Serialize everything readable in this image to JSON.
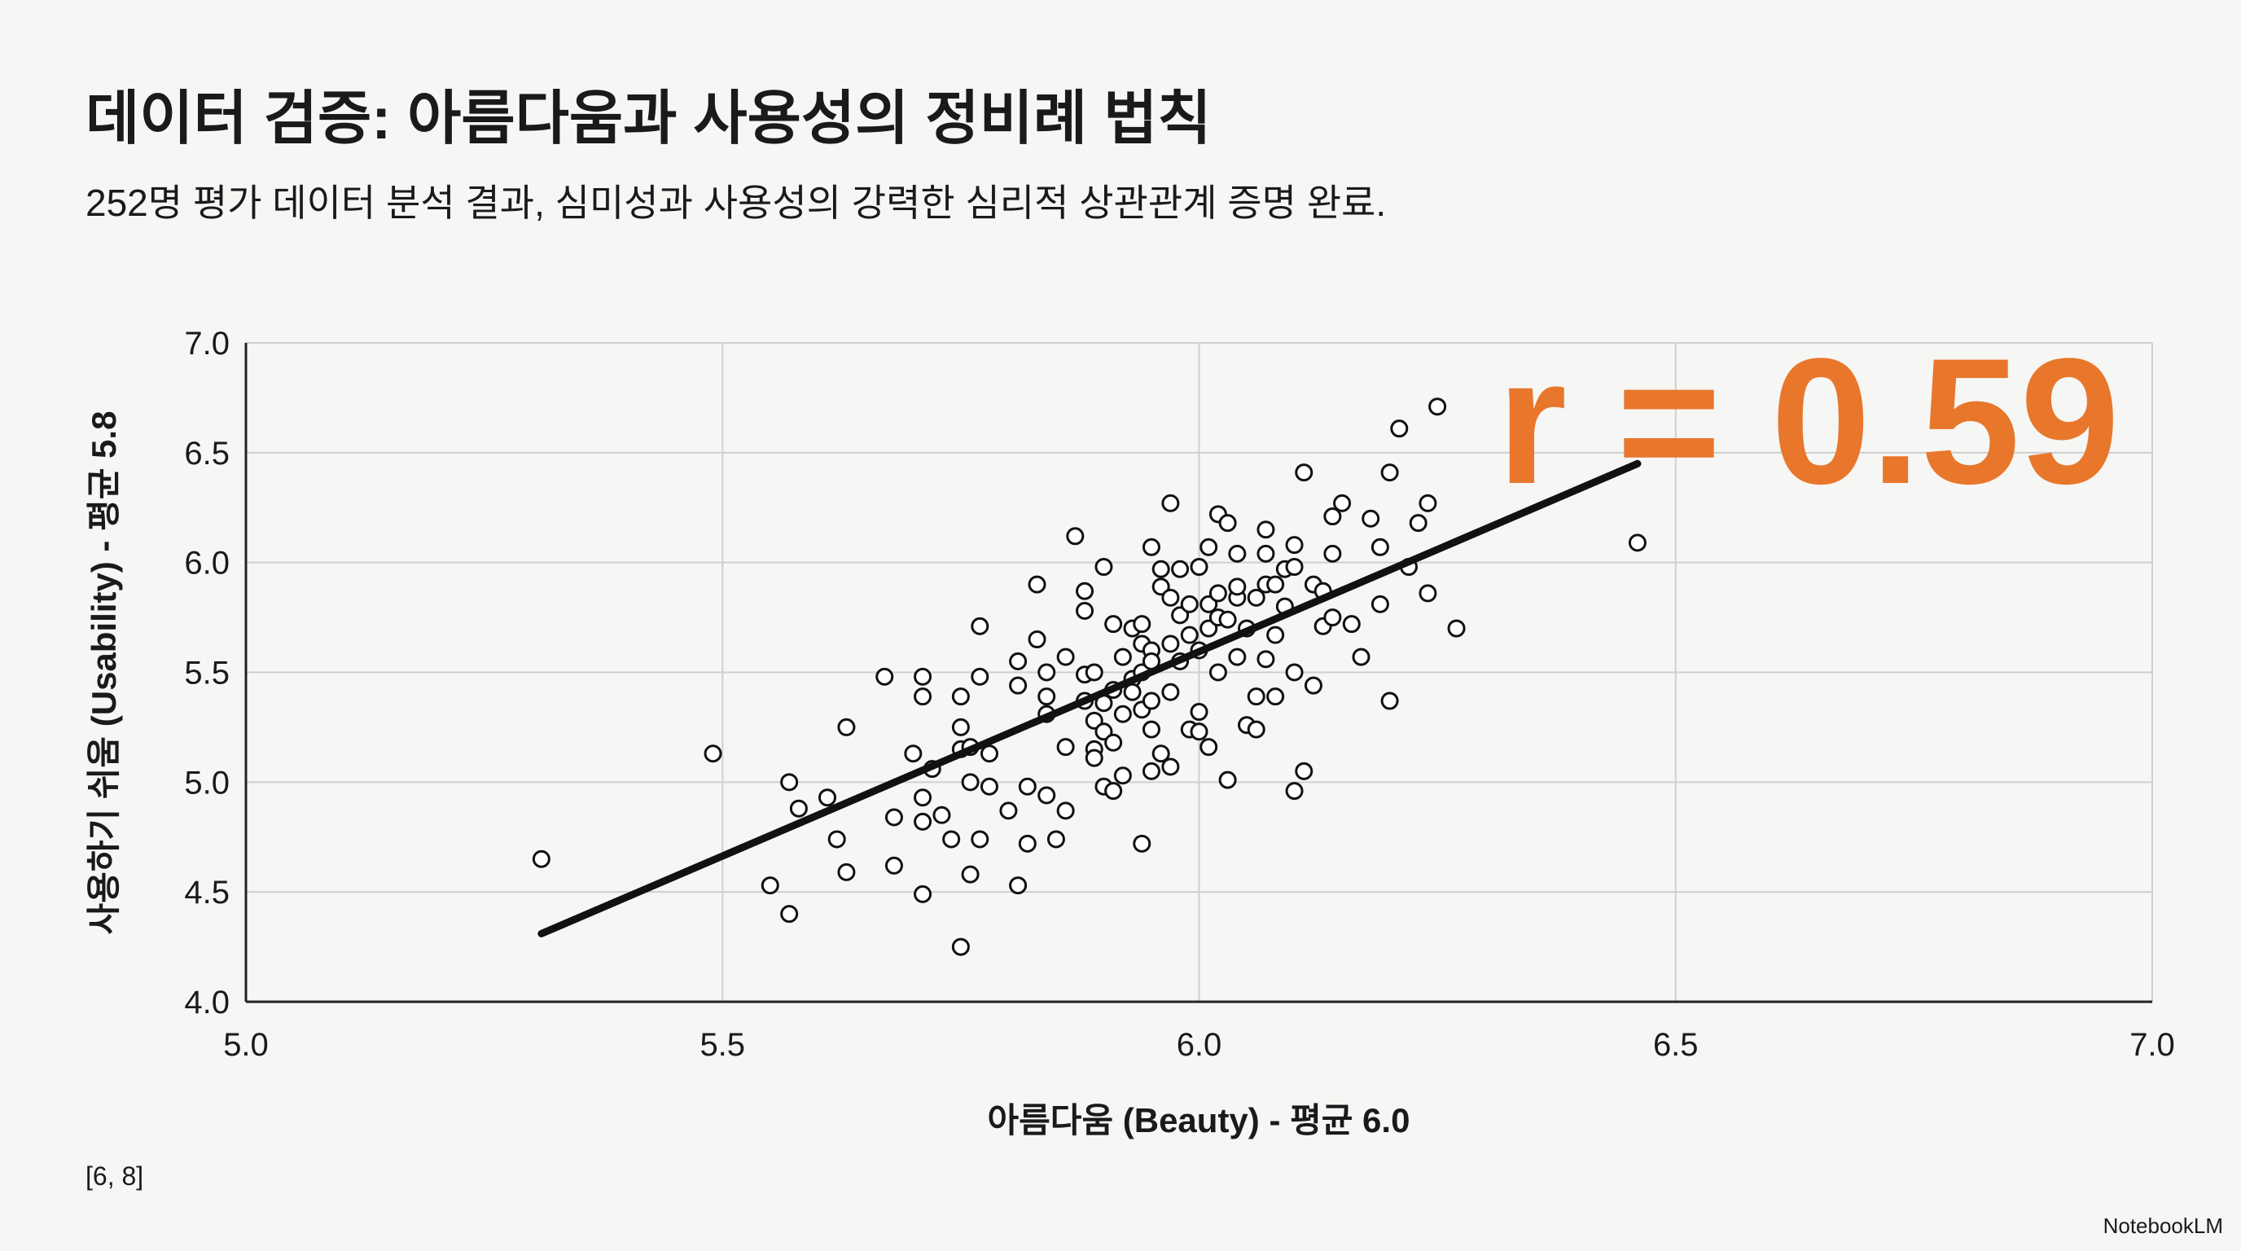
{
  "chart_data": {
    "type": "scatter",
    "title": "데이터 검증: 아름다움과 사용성의 정비례 법칙",
    "subtitle": "252명 평가 데이터 분석 결과, 심미성과 사용성의 강력한 심리적 상관관계 증명 완료.",
    "x_label": "아름다움 (Beauty) - 평균 6.0",
    "y_label": "사용하기 쉬움 (Usability) - 평균 5.8",
    "annotation": "r = 0.59",
    "annotation_color": "#e8772b",
    "source": "[6, 8]",
    "watermark": "NotebookLM",
    "grid": true,
    "color": "#111111",
    "xlim": [
      5,
      7
    ],
    "ylim": [
      4,
      7
    ],
    "xticks": [
      {
        "value": 5,
        "label": "5.0"
      },
      5.5,
      {
        "value": 6,
        "label": "6.0"
      },
      6.5,
      {
        "value": 7,
        "label": "7.0"
      }
    ],
    "yticks": [
      {
        "value": 4,
        "label": "4.0"
      },
      4.5,
      {
        "value": 5,
        "label": "5.0"
      },
      5.5,
      {
        "value": 6,
        "label": "6.0"
      },
      6.5,
      {
        "value": 7,
        "label": "7.0"
      }
    ],
    "x": [
      5.31,
      5.49,
      5.57,
      5.55,
      5.57,
      5.58,
      5.61,
      5.62,
      5.63,
      5.63,
      5.67,
      5.68,
      5.68,
      5.7,
      5.71,
      5.71,
      5.71,
      5.71,
      5.71,
      5.72,
      5.73,
      5.74,
      5.75,
      5.75,
      5.75,
      5.76,
      5.76,
      5.75,
      5.76,
      5.77,
      5.77,
      5.77,
      5.78,
      5.78,
      5.8,
      5.81,
      5.81,
      5.81,
      5.82,
      5.82,
      5.83,
      5.83,
      5.84,
      5.84,
      5.84,
      5.84,
      5.85,
      5.86,
      5.86,
      5.86,
      5.87,
      5.88,
      5.88,
      5.88,
      5.88,
      5.89,
      5.89,
      5.89,
      5.89,
      5.9,
      5.9,
      5.9,
      5.9,
      5.91,
      5.91,
      5.91,
      5.91,
      5.92,
      5.92,
      5.92,
      5.93,
      5.93,
      5.93,
      5.94,
      5.94,
      5.94,
      5.94,
      5.94,
      5.95,
      5.95,
      5.95,
      5.95,
      5.95,
      5.95,
      5.96,
      5.96,
      5.96,
      5.97,
      5.97,
      5.97,
      5.97,
      5.97,
      5.98,
      5.98,
      5.98,
      5.99,
      5.99,
      5.99,
      6.0,
      6.0,
      6.0,
      6.0,
      6.01,
      6.01,
      6.01,
      6.01,
      6.02,
      6.02,
      6.02,
      6.02,
      6.03,
      6.03,
      6.03,
      6.04,
      6.04,
      6.04,
      6.04,
      6.05,
      6.05,
      6.06,
      6.06,
      6.06,
      6.07,
      6.07,
      6.07,
      6.07,
      6.08,
      6.08,
      6.08,
      6.09,
      6.09,
      6.1,
      6.1,
      6.1,
      6.1,
      6.11,
      6.11,
      6.12,
      6.12,
      6.13,
      6.13,
      6.14,
      6.14,
      6.14,
      6.15,
      6.16,
      6.17,
      6.18,
      6.19,
      6.19,
      6.2,
      6.2,
      6.21,
      6.22,
      6.23,
      6.24,
      6.24,
      6.25,
      6.27,
      6.46
    ],
    "values": [
      4.65,
      5.13,
      4.4,
      4.53,
      5.0,
      4.88,
      4.93,
      4.74,
      4.59,
      5.25,
      5.48,
      4.62,
      4.84,
      5.13,
      5.48,
      5.39,
      4.93,
      4.82,
      4.49,
      5.06,
      4.85,
      4.74,
      5.15,
      5.25,
      5.39,
      5.0,
      4.58,
      4.25,
      5.16,
      4.74,
      5.48,
      5.71,
      5.13,
      4.98,
      4.87,
      5.44,
      4.53,
      5.55,
      4.98,
      4.72,
      5.9,
      5.65,
      5.31,
      5.5,
      4.94,
      5.39,
      4.74,
      5.16,
      5.57,
      4.87,
      6.12,
      5.87,
      5.78,
      5.49,
      5.37,
      5.28,
      5.15,
      5.11,
      5.5,
      5.98,
      5.36,
      5.23,
      4.98,
      5.18,
      5.72,
      5.42,
      4.96,
      5.57,
      5.03,
      5.31,
      5.7,
      5.47,
      5.41,
      5.63,
      5.72,
      5.5,
      4.72,
      5.33,
      5.24,
      5.05,
      5.6,
      6.07,
      5.37,
      5.55,
      5.89,
      5.13,
      5.97,
      5.63,
      5.84,
      5.41,
      6.27,
      5.07,
      5.76,
      5.97,
      5.55,
      5.24,
      5.81,
      5.67,
      5.32,
      5.6,
      5.98,
      5.23,
      5.16,
      6.07,
      5.7,
      5.81,
      5.5,
      5.75,
      6.22,
      5.86,
      5.01,
      6.18,
      5.74,
      5.84,
      5.57,
      6.04,
      5.89,
      5.7,
      5.26,
      5.84,
      5.24,
      5.39,
      5.9,
      6.15,
      5.56,
      6.04,
      5.9,
      5.39,
      5.67,
      5.97,
      5.8,
      4.96,
      5.5,
      6.08,
      5.98,
      6.41,
      5.05,
      5.44,
      5.9,
      5.71,
      5.87,
      6.04,
      5.75,
      6.21,
      6.27,
      5.72,
      5.57,
      6.2,
      5.81,
      6.07,
      5.37,
      6.41,
      6.61,
      5.98,
      6.18,
      6.27,
      5.86,
      6.71,
      5.7,
      6.09
    ],
    "trendline": {
      "x": [
        5.31,
        6.46
      ],
      "values": [
        4.31,
        6.45
      ]
    }
  }
}
